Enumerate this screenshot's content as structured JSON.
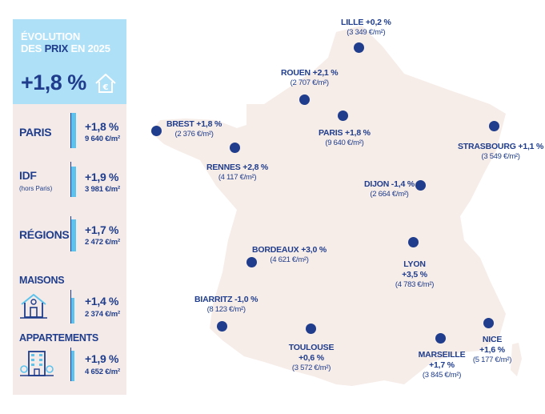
{
  "header": {
    "title_line1": "ÉVOLUTION",
    "title_line2_pre": "DES",
    "title_line2_accent": "PRIX",
    "title_line2_post": "EN 2025",
    "national_change": "+1,8 %",
    "icon": "euro-house-icon"
  },
  "segments": [
    {
      "label": "PARIS",
      "sublabel": "",
      "change": "+1,8 %",
      "price": "9 640 €/m²",
      "level": 0.45
    },
    {
      "label": "IDF",
      "sublabel": "(hors Paris)",
      "change": "+1,9 %",
      "price": "3 981 €/m²",
      "level": 0.65
    },
    {
      "label": "RÉGIONS",
      "sublabel": "",
      "change": "+1,7 %",
      "price": "2 472 €/m²",
      "level": 0.8
    }
  ],
  "types": [
    {
      "label": "MAISONS",
      "icon": "house-icon",
      "change": "+1,4 %",
      "price": "2 374 €/m²",
      "level": 0.35
    },
    {
      "label": "APPARTEMENTS",
      "icon": "apartment-building-icon",
      "change": "+1,9 %",
      "price": "4 652 €/m²",
      "level": 0.5
    }
  ],
  "cities": [
    {
      "name": "LILLE +0,2 %",
      "price": "(3 349 €/m²)"
    },
    {
      "name": "ROUEN +2,1 %",
      "price": "(2 707 €/m²)"
    },
    {
      "name": "BREST +1,8 %",
      "price": "(2 376 €/m²)"
    },
    {
      "name": "PARIS +1,8 %",
      "price": "(9 640 €/m²)"
    },
    {
      "name": "STRASBOURG +1,1 %",
      "price": "(3 549 €/m²)"
    },
    {
      "name": "RENNES +2,8 %",
      "price": "(4 117 €/m²)"
    },
    {
      "name": "DIJON -1,4 %",
      "price": "(2 664 €/m²)"
    },
    {
      "name": "BORDEAUX +3,0 %",
      "price": "(4 621 €/m²)"
    },
    {
      "name": "LYON",
      "change": "+3,5 %",
      "price": "(4 783 €/m²)"
    },
    {
      "name": "BIARRITZ -1,0 %",
      "price": "(8 123 €/m²)"
    },
    {
      "name": "TOULOUSE",
      "change": "+0,6 %",
      "price": "(3 572 €/m²)"
    },
    {
      "name": "MARSEILLE",
      "change": "+1,7 %",
      "price": "(3 845 €/m²)"
    },
    {
      "name": "NICE",
      "change": "+1,6 %",
      "price": "(5 177 €/m²)"
    }
  ],
  "colors": {
    "navy": "#1f3d8c",
    "light_blue": "#aee0f8",
    "accent_blue": "#5bc3ee",
    "panel_bg": "#f4ebe8",
    "map_fill": "#f6ece8"
  }
}
